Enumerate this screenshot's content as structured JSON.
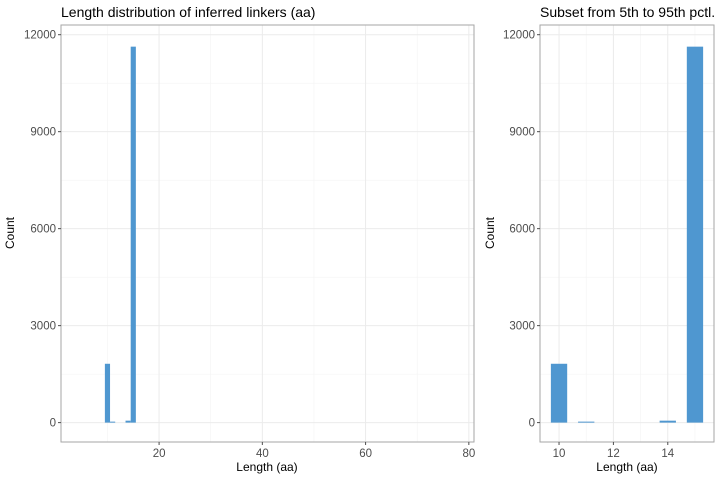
{
  "chart_data": [
    {
      "type": "bar",
      "title": "Length distribution of inferred linkers (aa)",
      "xlabel": "Length (aa)",
      "ylabel": "Count",
      "xlim": [
        1,
        81
      ],
      "ylim": [
        -600,
        12300
      ],
      "xticks": [
        20,
        40,
        60,
        80
      ],
      "yticks": [
        0,
        3000,
        6000,
        9000,
        12000
      ],
      "bin_width": 1,
      "grid": true,
      "color": "#4f97d0",
      "bins": [
        {
          "x": 10,
          "value": 1820
        },
        {
          "x": 11,
          "value": 30
        },
        {
          "x": 14,
          "value": 60
        },
        {
          "x": 15,
          "value": 11630
        }
      ]
    },
    {
      "type": "bar",
      "title": "Subset from 5th to 95th pctl.",
      "xlabel": "Length (aa)",
      "ylabel": "Count",
      "xlim": [
        9.3,
        15.7
      ],
      "ylim": [
        -600,
        12300
      ],
      "xticks": [
        10,
        12,
        14
      ],
      "yticks": [
        0,
        3000,
        6000,
        9000,
        12000
      ],
      "bin_width": 0.6,
      "grid": true,
      "color": "#4f97d0",
      "bins": [
        {
          "x": 10,
          "value": 1820
        },
        {
          "x": 11,
          "value": 30
        },
        {
          "x": 14,
          "value": 60
        },
        {
          "x": 15,
          "value": 11630
        }
      ]
    }
  ]
}
